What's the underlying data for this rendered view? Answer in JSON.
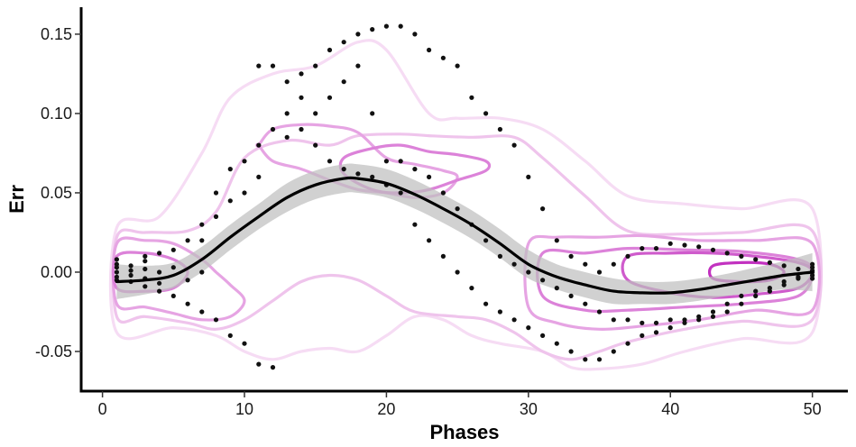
{
  "chart_data": {
    "type": "scatter",
    "title": "",
    "xlabel": "Phases",
    "ylabel": "Err",
    "xlim": [
      -1.5,
      52.5
    ],
    "ylim": [
      -0.075,
      0.167
    ],
    "x_ticks": [
      0,
      10,
      20,
      30,
      40,
      50
    ],
    "x_tick_labels": [
      "0",
      "10",
      "20",
      "30",
      "40",
      "50"
    ],
    "y_ticks": [
      -0.05,
      0.0,
      0.05,
      0.1,
      0.15
    ],
    "y_tick_labels": [
      "-0.05",
      "0.00",
      "0.05",
      "0.10",
      "0.15"
    ],
    "grid": false,
    "legend": "none",
    "colors": {
      "points": "#111111",
      "smooth_line": "#000000",
      "confidence_band": "#bdbdbd",
      "density_contours": [
        "#f6dcf4",
        "#efc4ec",
        "#e6a4e3",
        "#dc82d9",
        "#cf5bcc",
        "#c232c0"
      ]
    },
    "smooth_curve": {
      "x": [
        1,
        3,
        5,
        7,
        9,
        11,
        13,
        15,
        17,
        18,
        20,
        22,
        24,
        26,
        28,
        30,
        32,
        34,
        36,
        38,
        40,
        42,
        44,
        46,
        48,
        50
      ],
      "y": [
        -0.006,
        -0.005,
        -0.002,
        0.008,
        0.022,
        0.035,
        0.047,
        0.055,
        0.059,
        0.059,
        0.056,
        0.049,
        0.04,
        0.03,
        0.018,
        0.005,
        -0.003,
        -0.008,
        -0.012,
        -0.013,
        -0.013,
        -0.011,
        -0.008,
        -0.005,
        -0.002,
        0.0
      ],
      "band_halfwidth": [
        0.011,
        0.009,
        0.008,
        0.008,
        0.008,
        0.008,
        0.009,
        0.009,
        0.009,
        0.009,
        0.009,
        0.009,
        0.009,
        0.009,
        0.009,
        0.009,
        0.008,
        0.008,
        0.008,
        0.007,
        0.007,
        0.007,
        0.007,
        0.008,
        0.009,
        0.012
      ]
    },
    "density_contours": [
      {
        "level": 1,
        "x": [
          1,
          4,
          7,
          9,
          12,
          15,
          18,
          20,
          23,
          25,
          28,
          31,
          34,
          37,
          41,
          45,
          50,
          50,
          45,
          41,
          38,
          35,
          33,
          31,
          28,
          26,
          24,
          22,
          20,
          18,
          16,
          14,
          12,
          10,
          8,
          5,
          1
        ],
        "y": [
          0.028,
          0.035,
          0.075,
          0.11,
          0.125,
          0.13,
          0.145,
          0.14,
          0.1,
          0.097,
          0.097,
          0.09,
          0.07,
          0.048,
          0.043,
          0.04,
          0.04,
          -0.038,
          -0.042,
          -0.05,
          -0.058,
          -0.061,
          -0.06,
          -0.05,
          -0.045,
          -0.04,
          -0.03,
          -0.028,
          -0.04,
          -0.05,
          -0.048,
          -0.05,
          -0.055,
          -0.05,
          -0.04,
          -0.035,
          -0.038
        ]
      },
      {
        "level": 2,
        "x": [
          1,
          3,
          6,
          8,
          10,
          13,
          16,
          18,
          21,
          23,
          26,
          29,
          31,
          34,
          37,
          41,
          45,
          50,
          50,
          45,
          41,
          37,
          35,
          33,
          31,
          29,
          27,
          25,
          22,
          20,
          18,
          16,
          14,
          12,
          10,
          8,
          6,
          3,
          1
        ],
        "y": [
          0.022,
          0.025,
          0.026,
          0.038,
          0.072,
          0.083,
          0.08,
          0.086,
          0.087,
          0.086,
          0.085,
          0.085,
          0.072,
          0.048,
          0.026,
          0.024,
          0.025,
          0.026,
          -0.03,
          -0.031,
          -0.036,
          -0.044,
          -0.05,
          -0.055,
          -0.05,
          -0.038,
          -0.03,
          -0.028,
          -0.025,
          -0.015,
          -0.005,
          -0.002,
          -0.006,
          -0.018,
          -0.03,
          -0.036,
          -0.032,
          -0.028,
          -0.028
        ]
      },
      {
        "level": 3,
        "x": [
          1,
          3,
          5,
          7,
          8,
          9,
          10,
          9,
          7,
          5,
          3,
          1
        ],
        "y": [
          0.018,
          0.02,
          0.018,
          0.008,
          0.0,
          -0.008,
          -0.018,
          -0.028,
          -0.03,
          -0.026,
          -0.022,
          -0.02
        ]
      },
      {
        "level": 3,
        "x": [
          11,
          12,
          14,
          16,
          18,
          20,
          22,
          24,
          25,
          24,
          22,
          20,
          18,
          16,
          14,
          12,
          11
        ],
        "y": [
          0.08,
          0.09,
          0.093,
          0.092,
          0.088,
          0.072,
          0.068,
          0.064,
          0.06,
          0.05,
          0.047,
          0.05,
          0.052,
          0.058,
          0.065,
          0.07,
          0.08
        ]
      },
      {
        "level": 3,
        "x": [
          30,
          32,
          35,
          38,
          42,
          46,
          50,
          50,
          46,
          42,
          38,
          35,
          32,
          30
        ],
        "y": [
          0.018,
          0.022,
          0.022,
          0.023,
          0.02,
          0.02,
          0.018,
          -0.024,
          -0.024,
          -0.03,
          -0.034,
          -0.036,
          -0.032,
          -0.022
        ]
      },
      {
        "level": 4,
        "x": [
          1,
          3,
          5,
          6,
          5,
          3,
          1
        ],
        "y": [
          0.01,
          0.012,
          0.008,
          0.0,
          -0.01,
          -0.012,
          -0.01
        ]
      },
      {
        "level": 4,
        "x": [
          17,
          19,
          21,
          23,
          25,
          27,
          27,
          25,
          23,
          21,
          19,
          17
        ],
        "y": [
          0.072,
          0.078,
          0.08,
          0.076,
          0.074,
          0.07,
          0.064,
          0.058,
          0.052,
          0.05,
          0.052,
          0.062
        ]
      },
      {
        "level": 4,
        "x": [
          31,
          34,
          37,
          41,
          45,
          49,
          50,
          49,
          45,
          41,
          37,
          34,
          31
        ],
        "y": [
          0.012,
          0.012,
          0.015,
          0.014,
          0.013,
          0.008,
          0.0,
          -0.015,
          -0.02,
          -0.022,
          -0.024,
          -0.024,
          -0.015
        ]
      },
      {
        "level": 5,
        "x": [
          37,
          40,
          43,
          46,
          49,
          50,
          49,
          46,
          43,
          40,
          37
        ],
        "y": [
          0.01,
          0.012,
          0.012,
          0.01,
          0.006,
          0.0,
          -0.01,
          -0.014,
          -0.016,
          -0.013,
          -0.005
        ]
      },
      {
        "level": 6,
        "x": [
          43,
          45,
          47,
          48,
          47,
          45,
          43
        ],
        "y": [
          0.004,
          0.006,
          0.005,
          0.0,
          -0.005,
          -0.006,
          -0.004
        ]
      }
    ],
    "points": [
      [
        1,
        0.0
      ],
      [
        1,
        -0.003
      ],
      [
        1,
        0.005
      ],
      [
        1,
        -0.005
      ],
      [
        1,
        0.003
      ],
      [
        1,
        0.008
      ],
      [
        2,
        0.001
      ],
      [
        2,
        -0.002
      ],
      [
        2,
        0.004
      ],
      [
        2,
        -0.006
      ],
      [
        3,
        0.002
      ],
      [
        3,
        0.007
      ],
      [
        3,
        -0.004
      ],
      [
        3,
        -0.009
      ],
      [
        3,
        0.01
      ],
      [
        4,
        0.0
      ],
      [
        4,
        -0.007
      ],
      [
        4,
        0.012
      ],
      [
        4,
        -0.012
      ],
      [
        5,
        0.003
      ],
      [
        5,
        -0.015
      ],
      [
        5,
        0.014
      ],
      [
        6,
        -0.005
      ],
      [
        6,
        0.02
      ],
      [
        6,
        -0.02
      ],
      [
        7,
        0.0
      ],
      [
        7,
        -0.025
      ],
      [
        7,
        0.02
      ],
      [
        7,
        0.03
      ],
      [
        8,
        -0.03
      ],
      [
        8,
        0.035
      ],
      [
        8,
        0.05
      ],
      [
        9,
        -0.04
      ],
      [
        9,
        0.045
      ],
      [
        9,
        0.065
      ],
      [
        10,
        -0.045
      ],
      [
        10,
        0.05
      ],
      [
        10,
        0.07
      ],
      [
        11,
        -0.058
      ],
      [
        11,
        0.06
      ],
      [
        11,
        0.08
      ],
      [
        11,
        0.13
      ],
      [
        12,
        0.13
      ],
      [
        12,
        0.09
      ],
      [
        12,
        -0.06
      ],
      [
        13,
        0.12
      ],
      [
        13,
        0.1
      ],
      [
        13,
        0.085
      ],
      [
        14,
        0.125
      ],
      [
        14,
        0.11
      ],
      [
        14,
        0.09
      ],
      [
        15,
        0.13
      ],
      [
        15,
        0.1
      ],
      [
        15,
        0.08
      ],
      [
        16,
        0.14
      ],
      [
        16,
        0.11
      ],
      [
        16,
        0.07
      ],
      [
        17,
        0.145
      ],
      [
        17,
        0.12
      ],
      [
        17,
        0.065
      ],
      [
        18,
        0.15
      ],
      [
        18,
        0.13
      ],
      [
        18,
        0.062
      ],
      [
        19,
        0.153
      ],
      [
        19,
        0.1
      ],
      [
        19,
        0.06
      ],
      [
        20,
        0.155
      ],
      [
        20,
        0.07
      ],
      [
        20,
        0.055
      ],
      [
        21,
        0.155
      ],
      [
        21,
        0.07
      ],
      [
        21,
        0.05
      ],
      [
        22,
        0.15
      ],
      [
        22,
        0.065
      ],
      [
        22,
        0.03
      ],
      [
        23,
        0.14
      ],
      [
        23,
        0.06
      ],
      [
        23,
        0.02
      ],
      [
        24,
        0.135
      ],
      [
        24,
        0.05
      ],
      [
        24,
        0.01
      ],
      [
        25,
        0.13
      ],
      [
        25,
        0.04
      ],
      [
        25,
        0.0
      ],
      [
        26,
        0.11
      ],
      [
        26,
        0.03
      ],
      [
        26,
        -0.01
      ],
      [
        27,
        0.1
      ],
      [
        27,
        0.02
      ],
      [
        27,
        -0.02
      ],
      [
        28,
        0.09
      ],
      [
        28,
        0.01
      ],
      [
        28,
        -0.025
      ],
      [
        29,
        0.08
      ],
      [
        29,
        0.005
      ],
      [
        29,
        -0.03
      ],
      [
        30,
        0.06
      ],
      [
        30,
        0.0
      ],
      [
        30,
        -0.035
      ],
      [
        31,
        0.04
      ],
      [
        31,
        -0.005
      ],
      [
        31,
        -0.04
      ],
      [
        32,
        0.02
      ],
      [
        32,
        -0.01
      ],
      [
        32,
        -0.045
      ],
      [
        33,
        0.01
      ],
      [
        33,
        -0.015
      ],
      [
        33,
        -0.05
      ],
      [
        34,
        0.005
      ],
      [
        34,
        -0.02
      ],
      [
        34,
        -0.055
      ],
      [
        35,
        0.0
      ],
      [
        35,
        -0.025
      ],
      [
        35,
        -0.055
      ],
      [
        36,
        0.005
      ],
      [
        36,
        -0.03
      ],
      [
        36,
        -0.05
      ],
      [
        37,
        0.01
      ],
      [
        37,
        -0.03
      ],
      [
        37,
        -0.045
      ],
      [
        38,
        0.015
      ],
      [
        38,
        -0.032
      ],
      [
        38,
        -0.04
      ],
      [
        39,
        0.015
      ],
      [
        39,
        -0.032
      ],
      [
        39,
        -0.038
      ],
      [
        40,
        0.018
      ],
      [
        40,
        -0.03
      ],
      [
        40,
        -0.035
      ],
      [
        41,
        0.017
      ],
      [
        41,
        -0.03
      ],
      [
        41,
        -0.032
      ],
      [
        42,
        0.016
      ],
      [
        42,
        -0.028
      ],
      [
        42,
        -0.03
      ],
      [
        43,
        0.014
      ],
      [
        43,
        -0.025
      ],
      [
        43,
        -0.028
      ],
      [
        44,
        0.012
      ],
      [
        44,
        -0.02
      ],
      [
        44,
        -0.025
      ],
      [
        45,
        0.01
      ],
      [
        45,
        -0.015
      ],
      [
        45,
        -0.02
      ],
      [
        46,
        0.008
      ],
      [
        46,
        -0.012
      ],
      [
        46,
        -0.015
      ],
      [
        47,
        0.006
      ],
      [
        47,
        -0.01
      ],
      [
        47,
        -0.012
      ],
      [
        48,
        0.004
      ],
      [
        48,
        -0.006
      ],
      [
        48,
        -0.008
      ],
      [
        49,
        0.002
      ],
      [
        49,
        -0.003
      ],
      [
        49,
        -0.004
      ],
      [
        50,
        0.0
      ],
      [
        50,
        0.003
      ],
      [
        50,
        -0.002
      ],
      [
        50,
        0.005
      ],
      [
        50,
        -0.004
      ],
      [
        50,
        0.001
      ]
    ]
  }
}
